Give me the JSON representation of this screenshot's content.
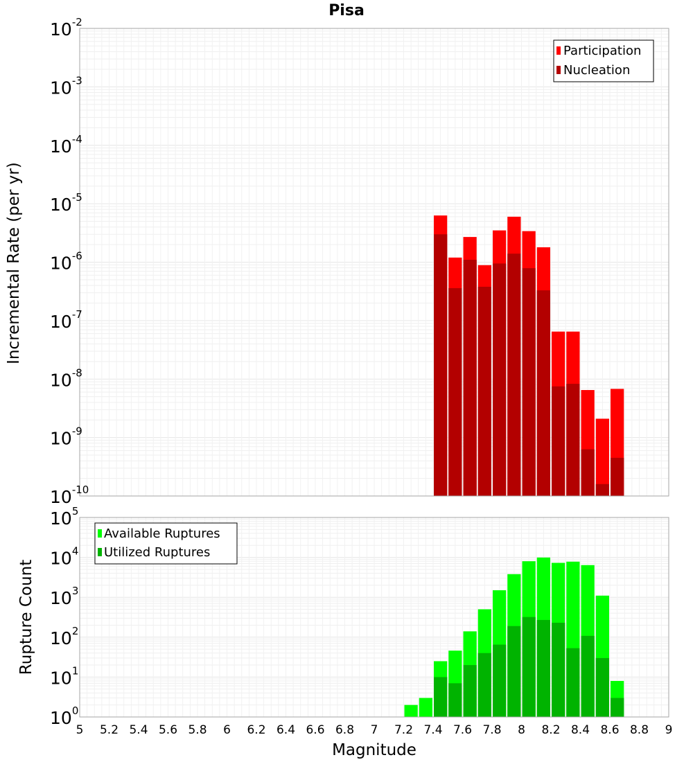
{
  "chart_data": [
    {
      "type": "bar",
      "title": "Pisa",
      "xlabel": "Magnitude",
      "ylabel": "Incremental Rate (per yr)",
      "yscale": "log",
      "ylim_exponents": [
        -10,
        -2
      ],
      "xlim": [
        5,
        9
      ],
      "x_tick_labels": [
        "5",
        "5.2",
        "5.4",
        "5.6",
        "5.8",
        "6",
        "6.2",
        "6.4",
        "6.6",
        "6.8",
        "7",
        "7.2",
        "7.4",
        "7.6",
        "7.8",
        "8",
        "8.2",
        "8.4",
        "8.6",
        "8.8",
        "9"
      ],
      "legend_position": "top-right",
      "x": [
        7.45,
        7.55,
        7.65,
        7.75,
        7.85,
        7.95,
        8.05,
        8.15,
        8.25,
        8.35,
        8.45,
        8.55,
        8.65
      ],
      "series": [
        {
          "name": "Participation",
          "color": "#ff0000",
          "values": [
            6.3e-06,
            1.2e-06,
            2.7e-06,
            8.9e-07,
            3.5e-06,
            6e-06,
            3.4e-06,
            1.8e-06,
            6.5e-08,
            6.5e-08,
            6.5e-09,
            2.1e-09,
            6.8e-09
          ]
        },
        {
          "name": "Nucleation",
          "color": "#b30000",
          "values": [
            3e-06,
            3.6e-07,
            1.1e-06,
            3.8e-07,
            9.5e-07,
            1.4e-06,
            7.9e-07,
            3.3e-07,
            7.5e-09,
            8.3e-09,
            6.3e-10,
            1.6e-10,
            4.5e-10
          ]
        }
      ]
    },
    {
      "type": "bar",
      "title": "",
      "xlabel": "Magnitude",
      "ylabel": "Rupture Count",
      "yscale": "log",
      "ylim_exponents": [
        0,
        5
      ],
      "xlim": [
        5,
        9
      ],
      "legend_position": "top-left",
      "x": [
        7.25,
        7.35,
        7.45,
        7.55,
        7.65,
        7.75,
        7.85,
        7.95,
        8.05,
        8.15,
        8.25,
        8.35,
        8.45,
        8.55,
        8.65
      ],
      "series": [
        {
          "name": "Available Ruptures",
          "color": "#00ff00",
          "values": [
            2,
            3,
            25,
            46,
            140,
            500,
            1500,
            3800,
            8000,
            9900,
            7300,
            7800,
            6400,
            1100,
            8
          ]
        },
        {
          "name": "Utilized Ruptures",
          "color": "#00b300",
          "values": [
            null,
            null,
            10,
            7,
            20,
            40,
            65,
            190,
            320,
            270,
            230,
            53,
            108,
            30,
            3
          ]
        }
      ]
    }
  ]
}
